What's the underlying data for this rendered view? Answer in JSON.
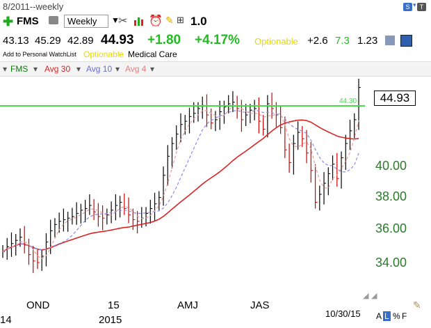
{
  "window": {
    "title": "8/2011--weekly"
  },
  "toolbar": {
    "symbol": "FMS",
    "period": "Weekly",
    "scale": "1.0",
    "s_badge": "S",
    "t_badge": "T"
  },
  "quote": {
    "open": "43.13",
    "high": "45.29",
    "low": "42.89",
    "last": "44.93",
    "change": "+1.80",
    "change_pct": "+4.17%",
    "optionable": "Optionable",
    "val1": "+2.6",
    "val2": "7.3",
    "val3": "1.23"
  },
  "info": {
    "watchlist": "Add to Personal WatchList",
    "optionable": "Optionable",
    "sector": "Medical Care"
  },
  "legend": {
    "symbol": "FMS",
    "avg30": "Avg 30",
    "avg10": "Avg 10",
    "avg4": "Avg 4"
  },
  "chart_data": {
    "type": "ohlc",
    "last_price_label": "44.93",
    "line_label": "44.30",
    "horizontal_line_value": 44.3,
    "y_ticks": [
      "40.00",
      "38.00",
      "36.00",
      "34.00"
    ],
    "x_ticks": [
      "OND",
      "15",
      "AMJ",
      "JAS"
    ],
    "x_sub_ticks": [
      "14",
      "2015"
    ],
    "date_label": "10/30/15",
    "colors": {
      "line": "#44dd44",
      "avg30": "#dd2222",
      "avg10": "#8888ee",
      "avg4": "#ee9999",
      "up": "#000000",
      "down": "#cc0000",
      "axis_text": "#2a7a2a"
    },
    "avg30_note": "red solid",
    "ylim": [
      33,
      46
    ]
  },
  "footer": {
    "a": "A",
    "l": "L",
    "pct": "%",
    "f": "F"
  }
}
